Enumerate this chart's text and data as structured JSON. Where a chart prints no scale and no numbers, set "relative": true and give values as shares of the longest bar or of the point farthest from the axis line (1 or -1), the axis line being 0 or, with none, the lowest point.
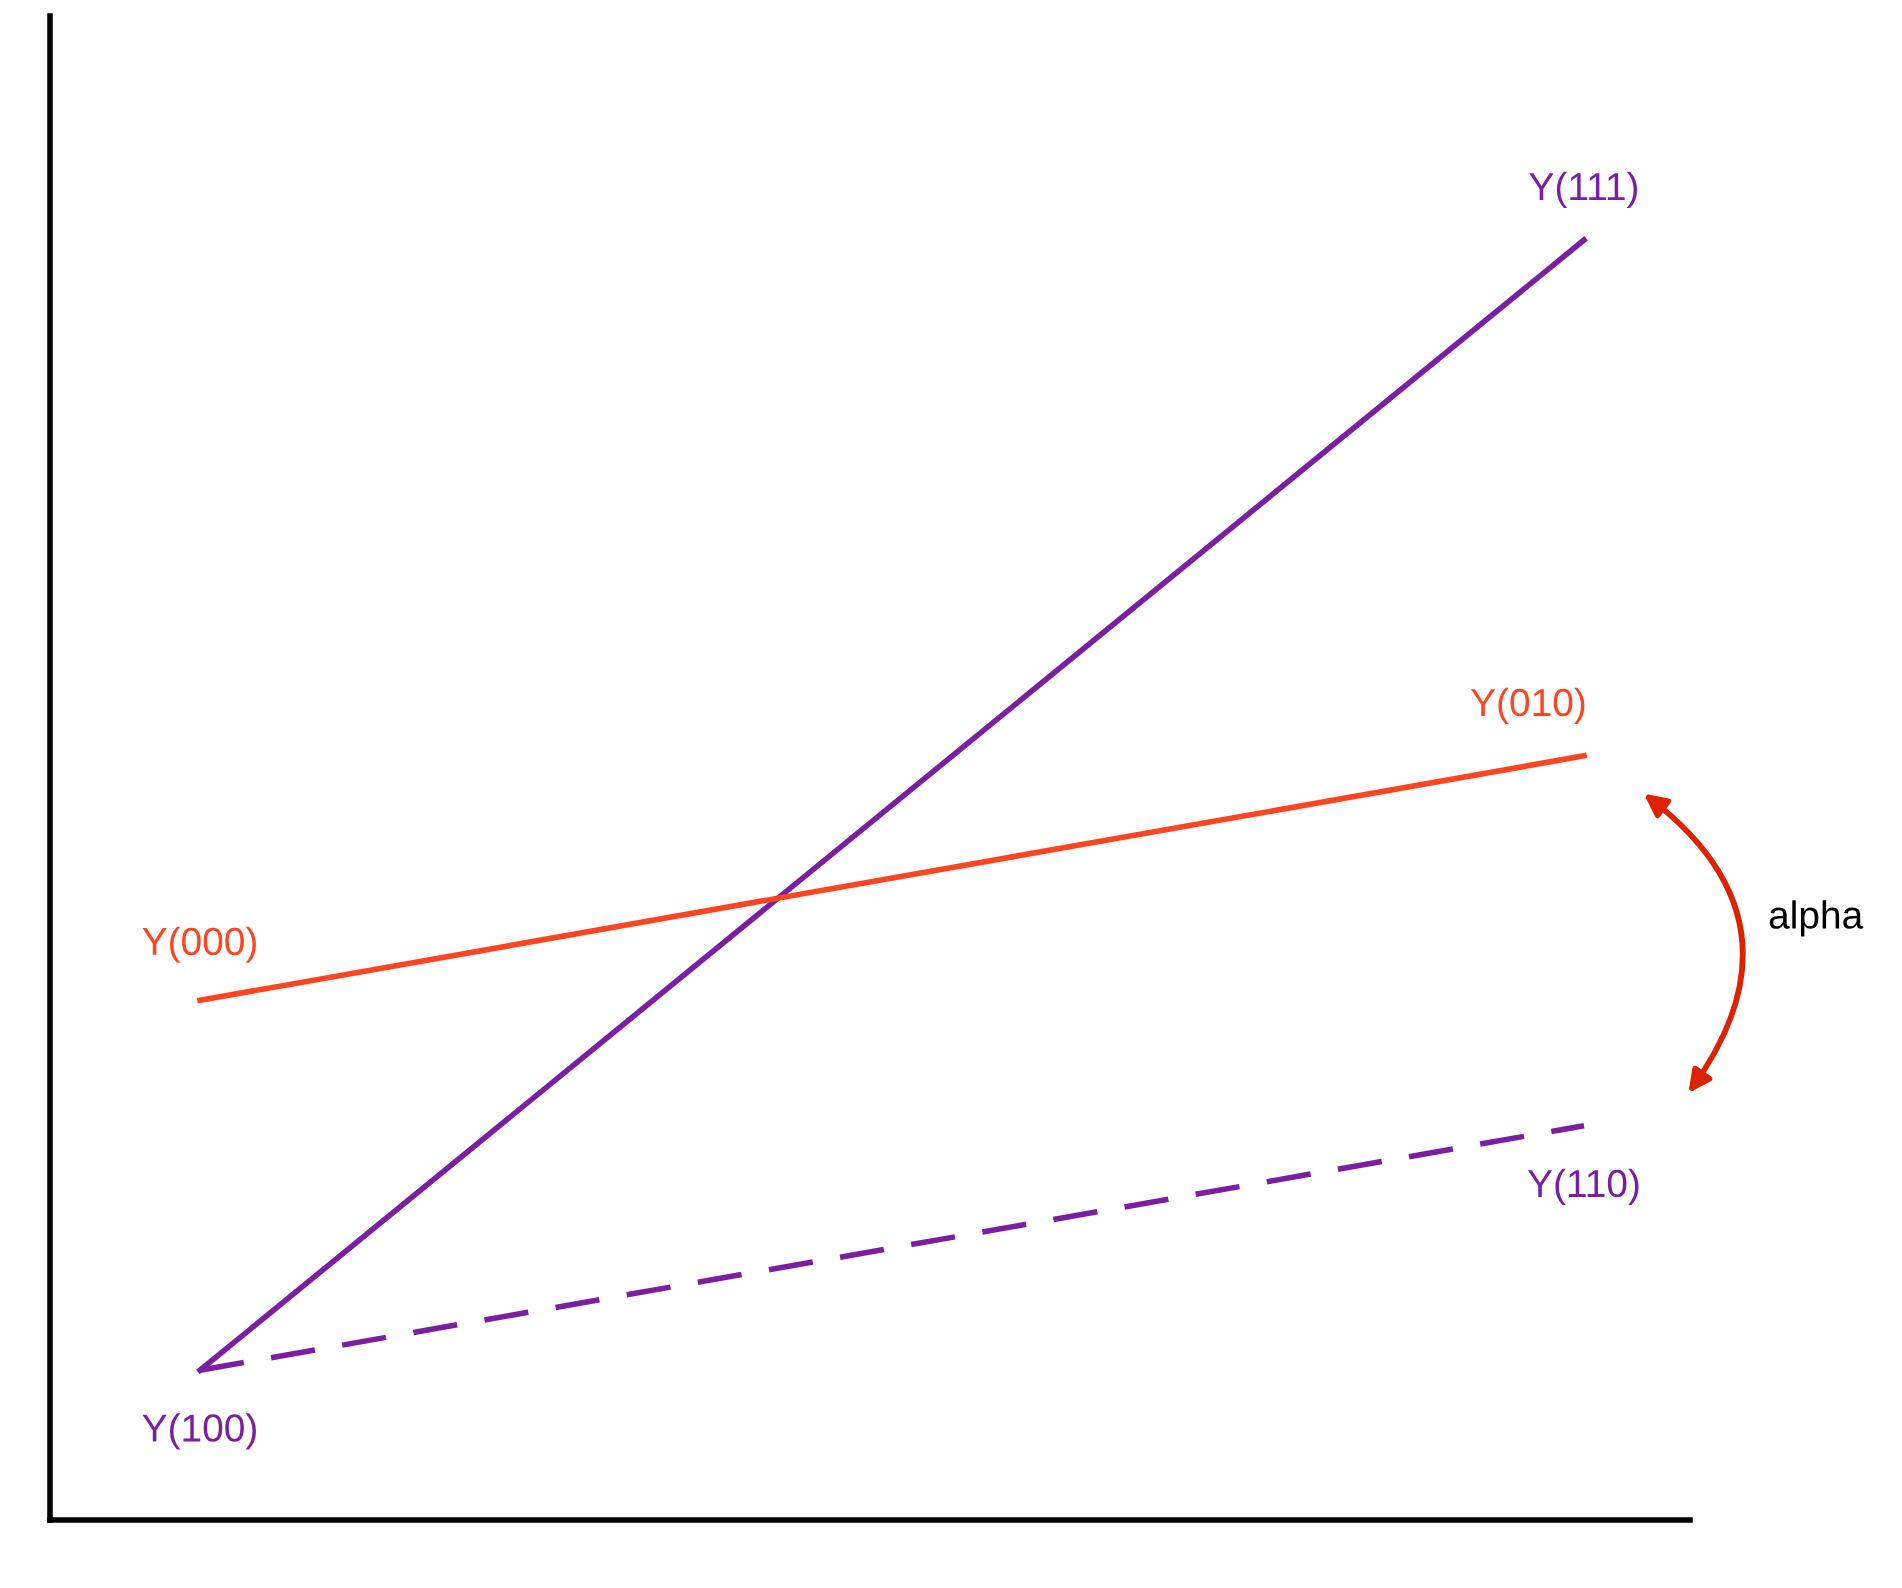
{
  "chart_data": {
    "type": "line",
    "relative": true,
    "categories": [
      null,
      null
    ],
    "series": [
      {
        "color": "#7b1fa2",
        "values": [
          0.117,
          1
        ],
        "line_style": "solid"
      },
      {
        "color": "#ff4422",
        "values": [
          0.406,
          0.597
        ],
        "line_style": "solid"
      },
      {
        "color": "#7b1fa2",
        "values": [
          0.117,
          0.308
        ],
        "line_style": "dashed"
      }
    ],
    "annotations": [
      "Y(100)",
      "Y(111)",
      "Y(000)",
      "Y(010)",
      "Y(110)",
      "alpha"
    ],
    "grid": false,
    "legend": false,
    "marker": "none"
  }
}
